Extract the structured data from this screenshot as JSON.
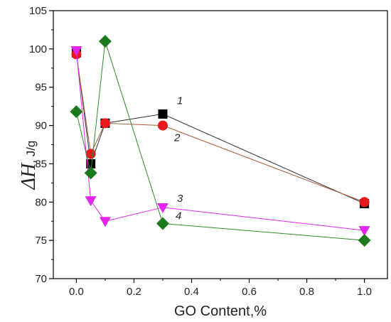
{
  "chart_data": {
    "type": "scatter",
    "xlabel": "GO Content,%",
    "ylabel_symbol": "ΔH",
    "ylabel_unit": ", J/g",
    "xlim": [
      -0.08,
      1.08
    ],
    "ylim": [
      70,
      105
    ],
    "x_ticks": [
      0.0,
      0.2,
      0.4,
      0.6,
      0.8,
      1.0
    ],
    "x_tick_labels": [
      "0.0",
      "0.2",
      "0.4",
      "0.6",
      "0.8",
      "1.0"
    ],
    "y_ticks": [
      70,
      75,
      80,
      85,
      90,
      95,
      100,
      105
    ],
    "y_tick_labels": [
      "70",
      "75",
      "80",
      "85",
      "90",
      "95",
      "100",
      "105"
    ],
    "grid": false,
    "series": [
      {
        "label": "1",
        "marker": "square",
        "color": "#000000",
        "line_color": "#333333",
        "x": [
          0.0,
          0.05,
          0.1,
          0.3,
          1.0
        ],
        "y": [
          99.5,
          85.0,
          90.3,
          91.5,
          79.8
        ]
      },
      {
        "label": "2",
        "marker": "circle",
        "color": "#e8191d",
        "line_color": "#a85a3c",
        "x": [
          0.0,
          0.05,
          0.1,
          0.3,
          1.0
        ],
        "y": [
          99.3,
          86.3,
          90.3,
          90.0,
          80.0
        ]
      },
      {
        "label": "3",
        "marker": "triangle-down",
        "color": "#e524f2",
        "line_color": "#e524f2",
        "x": [
          0.0,
          0.05,
          0.1,
          0.3,
          1.0
        ],
        "y": [
          99.8,
          80.2,
          77.5,
          79.3,
          76.3
        ]
      },
      {
        "label": "4",
        "marker": "diamond",
        "color": "#1b7a1b",
        "line_color": "#2e8b2e",
        "x": [
          0.0,
          0.05,
          0.1,
          0.3,
          1.0
        ],
        "y": [
          91.8,
          83.8,
          101.0,
          77.2,
          75.0
        ]
      }
    ]
  }
}
